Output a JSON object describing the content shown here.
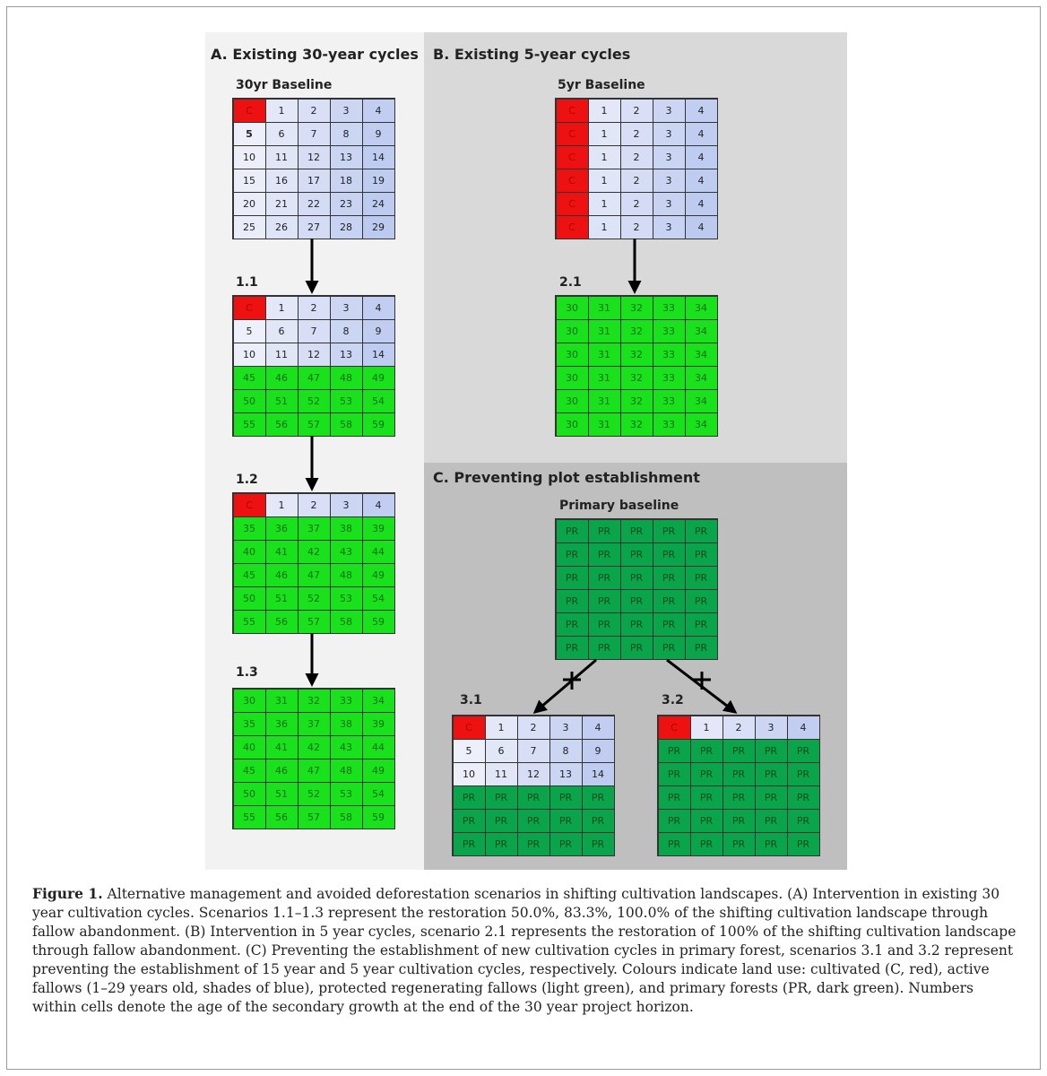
{
  "panels": {
    "a": {
      "title": "A. Existing 30-year cycles",
      "bg": "#f2f2f2"
    },
    "b": {
      "title": "B. Existing 5-year cycles",
      "bg": "#d9d9d9"
    },
    "c": {
      "title": "C. Preventing plot establishment",
      "bg": "#bfbfbf"
    }
  },
  "colors": {
    "cultivated": "#ee1111",
    "fallow_light": "#eef0fa",
    "fallow_dark": "#bccaf0",
    "regenerating": "#19e21d",
    "primary": "#0aa54a"
  },
  "grids": {
    "baseline30": {
      "label": "30yr Baseline",
      "rows": [
        [
          "C",
          "1",
          "2",
          "3",
          "4"
        ],
        [
          "5",
          "6",
          "7",
          "8",
          "9"
        ],
        [
          "10",
          "11",
          "12",
          "13",
          "14"
        ],
        [
          "15",
          "16",
          "17",
          "18",
          "19"
        ],
        [
          "20",
          "21",
          "22",
          "23",
          "24"
        ],
        [
          "25",
          "26",
          "27",
          "28",
          "29"
        ]
      ]
    },
    "s11": {
      "label": "1.1",
      "rows": [
        [
          "C",
          "1",
          "2",
          "3",
          "4"
        ],
        [
          "5",
          "6",
          "7",
          "8",
          "9"
        ],
        [
          "10",
          "11",
          "12",
          "13",
          "14"
        ],
        [
          "45",
          "46",
          "47",
          "48",
          "49"
        ],
        [
          "50",
          "51",
          "52",
          "53",
          "54"
        ],
        [
          "55",
          "56",
          "57",
          "58",
          "59"
        ]
      ],
      "greenFrom": 45
    },
    "s12": {
      "label": "1.2",
      "rows": [
        [
          "C",
          "1",
          "2",
          "3",
          "4"
        ],
        [
          "35",
          "36",
          "37",
          "38",
          "39"
        ],
        [
          "40",
          "41",
          "42",
          "43",
          "44"
        ],
        [
          "45",
          "46",
          "47",
          "48",
          "49"
        ],
        [
          "50",
          "51",
          "52",
          "53",
          "54"
        ],
        [
          "55",
          "56",
          "57",
          "58",
          "59"
        ]
      ],
      "greenFrom": 35
    },
    "s13": {
      "label": "1.3",
      "rows": [
        [
          "30",
          "31",
          "32",
          "33",
          "34"
        ],
        [
          "35",
          "36",
          "37",
          "38",
          "39"
        ],
        [
          "40",
          "41",
          "42",
          "43",
          "44"
        ],
        [
          "45",
          "46",
          "47",
          "48",
          "49"
        ],
        [
          "50",
          "51",
          "52",
          "53",
          "54"
        ],
        [
          "55",
          "56",
          "57",
          "58",
          "59"
        ]
      ],
      "greenFrom": 30
    },
    "baseline5": {
      "label": "5yr Baseline",
      "rows": [
        [
          "C",
          "1",
          "2",
          "3",
          "4"
        ],
        [
          "C",
          "1",
          "2",
          "3",
          "4"
        ],
        [
          "C",
          "1",
          "2",
          "3",
          "4"
        ],
        [
          "C",
          "1",
          "2",
          "3",
          "4"
        ],
        [
          "C",
          "1",
          "2",
          "3",
          "4"
        ],
        [
          "C",
          "1",
          "2",
          "3",
          "4"
        ]
      ]
    },
    "s21": {
      "label": "2.1",
      "rows": [
        [
          "30",
          "31",
          "32",
          "33",
          "34"
        ],
        [
          "30",
          "31",
          "32",
          "33",
          "34"
        ],
        [
          "30",
          "31",
          "32",
          "33",
          "34"
        ],
        [
          "30",
          "31",
          "32",
          "33",
          "34"
        ],
        [
          "30",
          "31",
          "32",
          "33",
          "34"
        ],
        [
          "30",
          "31",
          "32",
          "33",
          "34"
        ]
      ],
      "greenFrom": 30
    },
    "primary": {
      "label": "Primary baseline",
      "rows": [
        [
          "PR",
          "PR",
          "PR",
          "PR",
          "PR"
        ],
        [
          "PR",
          "PR",
          "PR",
          "PR",
          "PR"
        ],
        [
          "PR",
          "PR",
          "PR",
          "PR",
          "PR"
        ],
        [
          "PR",
          "PR",
          "PR",
          "PR",
          "PR"
        ],
        [
          "PR",
          "PR",
          "PR",
          "PR",
          "PR"
        ],
        [
          "PR",
          "PR",
          "PR",
          "PR",
          "PR"
        ]
      ]
    },
    "s31": {
      "label": "3.1",
      "rows": [
        [
          "C",
          "1",
          "2",
          "3",
          "4"
        ],
        [
          "5",
          "6",
          "7",
          "8",
          "9"
        ],
        [
          "10",
          "11",
          "12",
          "13",
          "14"
        ],
        [
          "PR",
          "PR",
          "PR",
          "PR",
          "PR"
        ],
        [
          "PR",
          "PR",
          "PR",
          "PR",
          "PR"
        ],
        [
          "PR",
          "PR",
          "PR",
          "PR",
          "PR"
        ]
      ]
    },
    "s32": {
      "label": "3.2",
      "rows": [
        [
          "C",
          "1",
          "2",
          "3",
          "4"
        ],
        [
          "PR",
          "PR",
          "PR",
          "PR",
          "PR"
        ],
        [
          "PR",
          "PR",
          "PR",
          "PR",
          "PR"
        ],
        [
          "PR",
          "PR",
          "PR",
          "PR",
          "PR"
        ],
        [
          "PR",
          "PR",
          "PR",
          "PR",
          "PR"
        ],
        [
          "PR",
          "PR",
          "PR",
          "PR",
          "PR"
        ]
      ]
    }
  },
  "caption": {
    "label": "Figure 1.",
    "text": "Alternative management and avoided deforestation scenarios in shifting cultivation landscapes. (A) Intervention in existing 30 year cultivation cycles. Scenarios 1.1–1.3 represent the restoration 50.0%, 83.3%, 100.0% of the shifting cultivation landscape through fallow abandonment. (B) Intervention in 5 year cycles, scenario 2.1 represents the restoration of 100% of the shifting cultivation landscape through fallow abandonment. (C) Preventing the establishment of new cultivation cycles in primary forest, scenarios 3.1 and 3.2 represent preventing the establishment of 15 year and 5 year cultivation cycles, respectively. Colours indicate land use: cultivated (C, red), active fallows (1–29 years old, shades of blue), protected regenerating fallows (light green), and primary forests (PR, dark green). Numbers within cells denote the age of the secondary growth at the end of the 30 year project horizon."
  }
}
